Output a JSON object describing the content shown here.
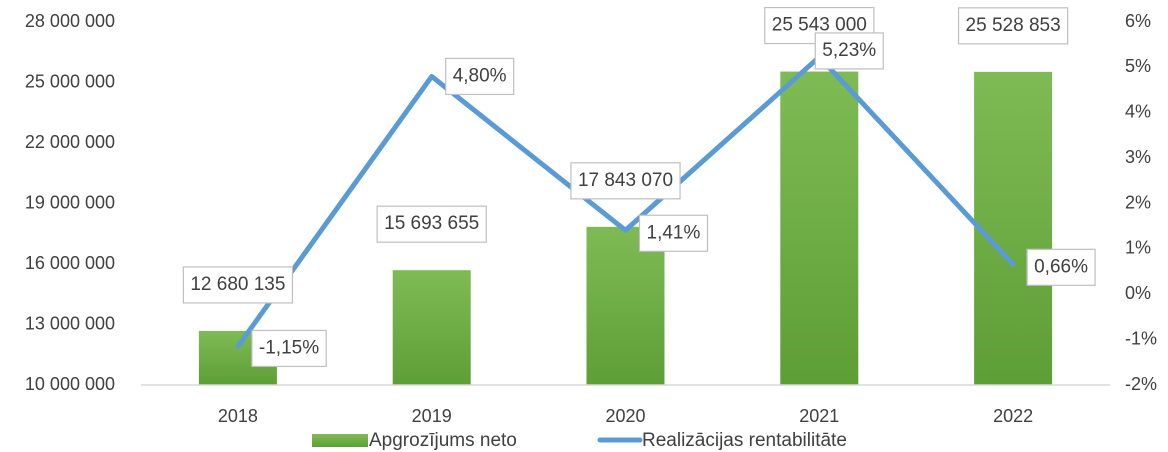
{
  "chart_data": {
    "type": "bar+line",
    "categories": [
      "2018",
      "2019",
      "2020",
      "2021",
      "2022"
    ],
    "series": [
      {
        "name": "Apgrozījums neto",
        "color": "#70ad47",
        "type": "bar",
        "values": [
          12680135,
          15693655,
          17843070,
          25543000,
          25528853
        ],
        "value_labels": [
          "12 680 135",
          "15 693 655",
          "17 843 070",
          "25 543 000",
          "25 528 853"
        ]
      },
      {
        "name": "Realizācijas rentabilitāte",
        "color": "#5b9bd5",
        "type": "line",
        "axis": "y2",
        "values": [
          -1.15,
          4.8,
          1.41,
          5.23,
          0.66
        ],
        "value_labels": [
          "-1,15%",
          "4,80%",
          "1,41%",
          "5,23%",
          "0,66%"
        ]
      }
    ],
    "ylim": [
      10000000,
      28000000
    ],
    "yticks": [
      {
        "value": 10000000,
        "label": "10 000 000"
      },
      {
        "value": 13000000,
        "label": "13 000 000"
      },
      {
        "value": 16000000,
        "label": "16 000 000"
      },
      {
        "value": 19000000,
        "label": "19 000 000"
      },
      {
        "value": 22000000,
        "label": "22 000 000"
      },
      {
        "value": 25000000,
        "label": "25 000 000"
      },
      {
        "value": 28000000,
        "label": "28 000 000"
      }
    ],
    "y2lim": [
      -2,
      6
    ],
    "y2ticks": [
      {
        "value": -2,
        "label": "-2%"
      },
      {
        "value": -1,
        "label": "-1%"
      },
      {
        "value": 0,
        "label": "0%"
      },
      {
        "value": 1,
        "label": "1%"
      },
      {
        "value": 2,
        "label": "2%"
      },
      {
        "value": 3,
        "label": "3%"
      },
      {
        "value": 4,
        "label": "4%"
      },
      {
        "value": 5,
        "label": "5%"
      },
      {
        "value": 6,
        "label": "6%"
      }
    ],
    "grid": false,
    "legend": "bottom"
  }
}
